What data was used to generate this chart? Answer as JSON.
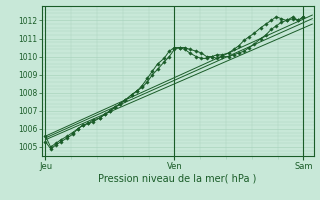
{
  "xlabel": "Pression niveau de la mer( hPa )",
  "ylim": [
    1004.5,
    1012.8
  ],
  "xlim": [
    -0.03,
    2.08
  ],
  "yticks": [
    1005,
    1006,
    1007,
    1008,
    1009,
    1010,
    1011,
    1012
  ],
  "xtick_labels": [
    "Jeu",
    "Ven",
    "Sam"
  ],
  "xtick_positions": [
    0.0,
    1.0,
    2.0
  ],
  "bg_color": "#c8e8d8",
  "grid_color": "#aad4be",
  "line_color": "#1a5c28",
  "marker": "D",
  "marker_size": 1.8,
  "series1_x": [
    0.0,
    0.04,
    0.08,
    0.12,
    0.17,
    0.21,
    0.25,
    0.29,
    0.33,
    0.37,
    0.42,
    0.46,
    0.5,
    0.54,
    0.58,
    0.62,
    0.67,
    0.71,
    0.75,
    0.79,
    0.83,
    0.87,
    0.92,
    0.96,
    1.0,
    1.04,
    1.08,
    1.12,
    1.17,
    1.21,
    1.25,
    1.29,
    1.33,
    1.37,
    1.42,
    1.46,
    1.5,
    1.54,
    1.58,
    1.62,
    1.67,
    1.71,
    1.75,
    1.79,
    1.83,
    1.87,
    1.92,
    1.96,
    2.0
  ],
  "series1_y": [
    1005.6,
    1005.0,
    1005.2,
    1005.4,
    1005.6,
    1005.8,
    1006.0,
    1006.2,
    1006.3,
    1006.5,
    1006.6,
    1006.8,
    1007.0,
    1007.2,
    1007.4,
    1007.6,
    1007.9,
    1008.1,
    1008.3,
    1008.6,
    1009.0,
    1009.3,
    1009.7,
    1010.0,
    1010.4,
    1010.5,
    1010.5,
    1010.4,
    1010.3,
    1010.2,
    1010.0,
    1010.0,
    1009.9,
    1010.0,
    1010.0,
    1010.1,
    1010.2,
    1010.3,
    1010.5,
    1010.7,
    1011.0,
    1011.2,
    1011.5,
    1011.7,
    1011.9,
    1012.0,
    1012.2,
    1012.0,
    1012.2
  ],
  "series2_x": [
    0.0,
    0.04,
    0.08,
    0.12,
    0.17,
    0.21,
    0.25,
    0.29,
    0.33,
    0.37,
    0.42,
    0.46,
    0.5,
    0.54,
    0.58,
    0.62,
    0.67,
    0.71,
    0.75,
    0.79,
    0.83,
    0.87,
    0.92,
    0.96,
    1.0,
    1.04,
    1.08,
    1.12,
    1.17,
    1.21,
    1.25,
    1.29,
    1.33,
    1.37,
    1.42,
    1.46,
    1.5,
    1.54,
    1.58,
    1.62,
    1.67,
    1.71,
    1.75,
    1.79,
    1.83,
    1.87,
    1.92,
    1.96,
    2.0
  ],
  "series2_y": [
    1005.3,
    1004.9,
    1005.1,
    1005.3,
    1005.5,
    1005.7,
    1006.0,
    1006.2,
    1006.3,
    1006.4,
    1006.6,
    1006.8,
    1007.0,
    1007.2,
    1007.4,
    1007.6,
    1007.9,
    1008.1,
    1008.4,
    1008.8,
    1009.2,
    1009.6,
    1009.9,
    1010.3,
    1010.5,
    1010.5,
    1010.4,
    1010.2,
    1010.0,
    1009.9,
    1009.9,
    1010.0,
    1010.1,
    1010.1,
    1010.2,
    1010.4,
    1010.6,
    1010.9,
    1011.1,
    1011.3,
    1011.6,
    1011.8,
    1012.0,
    1012.2,
    1012.1,
    1012.0,
    1012.1,
    1012.0,
    1012.2
  ],
  "trend1_x": [
    0.0,
    2.07
  ],
  "trend1_y": [
    1005.5,
    1012.1
  ],
  "trend2_x": [
    0.0,
    2.07
  ],
  "trend2_y": [
    1005.4,
    1011.8
  ],
  "trend3_x": [
    0.0,
    2.07
  ],
  "trend3_y": [
    1005.6,
    1012.3
  ],
  "vline_positions": [
    0.0,
    1.0,
    2.0
  ]
}
